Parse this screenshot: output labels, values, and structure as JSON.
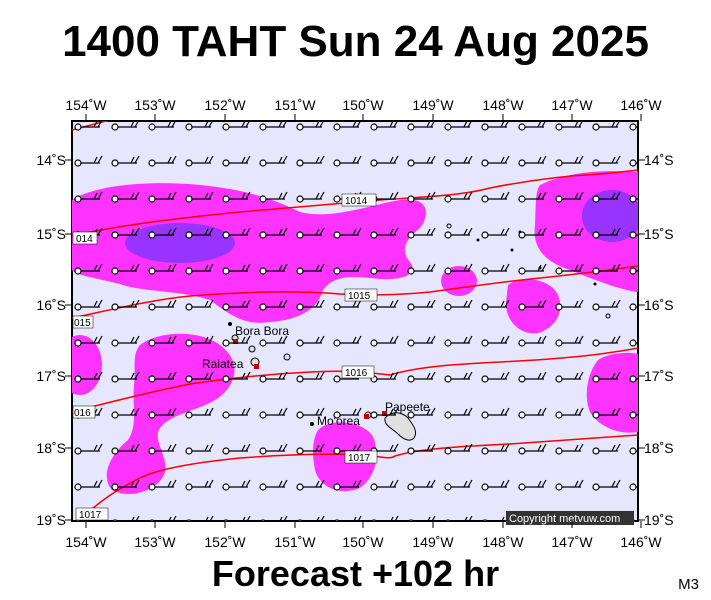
{
  "title": "1400 TAHT Sun 24 Aug 2025",
  "subtitle": "Forecast +102 hr",
  "model": "M3",
  "copyright": "Copyright metvuw.com",
  "lon_labels": [
    "154˚W",
    "153˚W",
    "152˚W",
    "151˚W",
    "150˚W",
    "149˚W",
    "148˚W",
    "147˚W",
    "146˚W"
  ],
  "lat_labels": [
    "14˚S",
    "15˚S",
    "16˚S",
    "17˚S",
    "18˚S",
    "19˚S"
  ],
  "isobars": [
    "1014",
    "014",
    "1015",
    "015",
    "1016",
    "016",
    "1017",
    "1017"
  ],
  "places": {
    "bora_bora": "Bora Bora",
    "raiatea": "Raiatea",
    "moorea": "Mo'orea",
    "papeete": "Papeete"
  },
  "colors": {
    "sea": "#e6e6ff",
    "rain_light": "#ff33ff",
    "rain_heavy": "#9933ff",
    "isobar": "#ff0000"
  }
}
